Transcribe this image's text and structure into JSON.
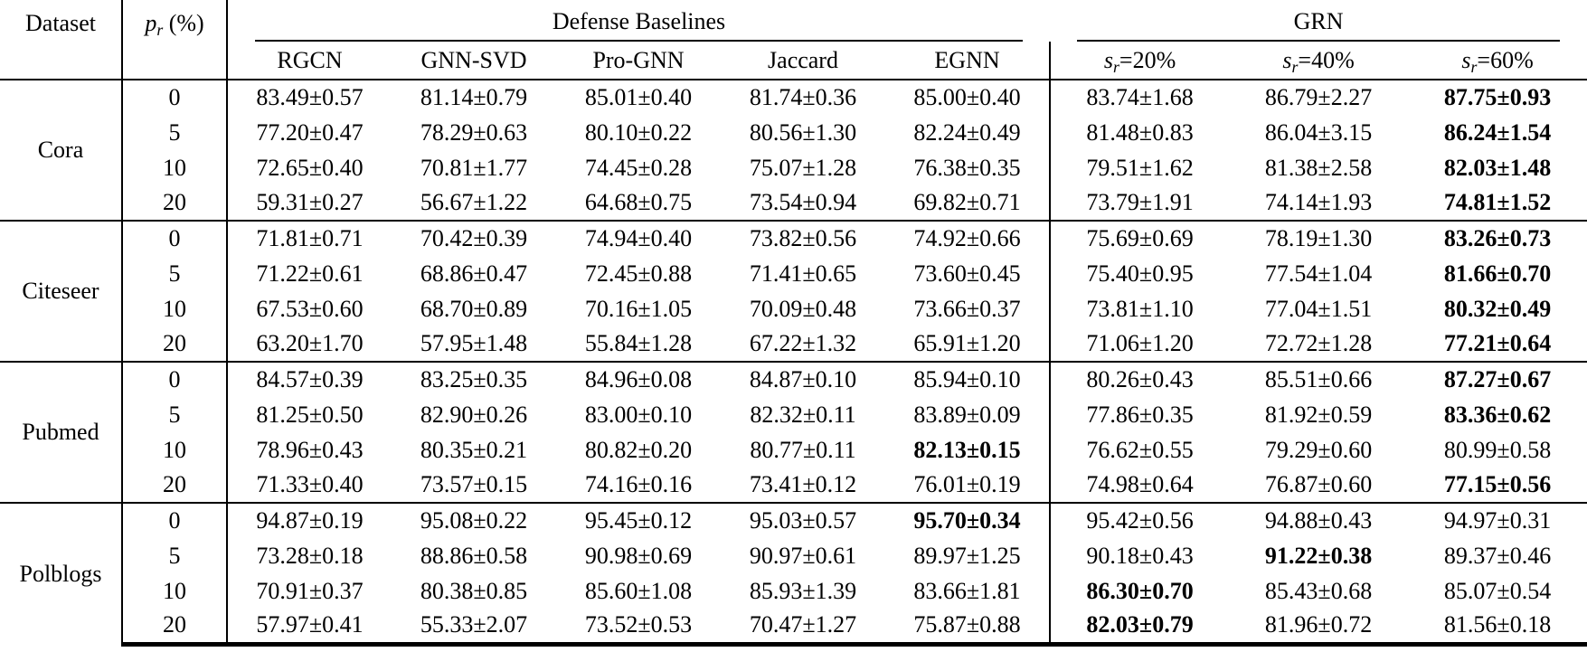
{
  "table": {
    "header": {
      "dataset_label": "Dataset",
      "pr": {
        "var": "p",
        "sub": "r",
        "suffix": " (%)"
      },
      "defense_group_label": "Defense Baselines",
      "grn_group_label": "GRN",
      "baseline_columns": [
        {
          "key": "rgcn",
          "label": "RGCN"
        },
        {
          "key": "gnn-svd",
          "label": "GNN-SVD"
        },
        {
          "key": "pro-gnn",
          "label": "Pro-GNN"
        },
        {
          "key": "jaccard",
          "label": "Jaccard"
        },
        {
          "key": "egnn",
          "label": "EGNN"
        }
      ],
      "grn_columns": [
        {
          "key": "sr-20",
          "var": "s",
          "sub": "r",
          "suffix": "=20%"
        },
        {
          "key": "sr-40",
          "var": "s",
          "sub": "r",
          "suffix": "=40%"
        },
        {
          "key": "sr-60",
          "var": "s",
          "sub": "r",
          "suffix": "=60%"
        }
      ]
    },
    "body": [
      {
        "dataset": "Cora",
        "rows": [
          {
            "pr": "0",
            "values": [
              "83.49±0.57",
              "81.14±0.79",
              "85.01±0.40",
              "81.74±0.36",
              "85.00±0.40",
              "83.74±1.68",
              "86.79±2.27",
              "87.75±0.93"
            ],
            "bold": [
              7
            ]
          },
          {
            "pr": "5",
            "values": [
              "77.20±0.47",
              "78.29±0.63",
              "80.10±0.22",
              "80.56±1.30",
              "82.24±0.49",
              "81.48±0.83",
              "86.04±3.15",
              "86.24±1.54"
            ],
            "bold": [
              7
            ]
          },
          {
            "pr": "10",
            "values": [
              "72.65±0.40",
              "70.81±1.77",
              "74.45±0.28",
              "75.07±1.28",
              "76.38±0.35",
              "79.51±1.62",
              "81.38±2.58",
              "82.03±1.48"
            ],
            "bold": [
              7
            ]
          },
          {
            "pr": "20",
            "values": [
              "59.31±0.27",
              "56.67±1.22",
              "64.68±0.75",
              "73.54±0.94",
              "69.82±0.71",
              "73.79±1.91",
              "74.14±1.93",
              "74.81±1.52"
            ],
            "bold": [
              7
            ]
          }
        ]
      },
      {
        "dataset": "Citeseer",
        "rows": [
          {
            "pr": "0",
            "values": [
              "71.81±0.71",
              "70.42±0.39",
              "74.94±0.40",
              "73.82±0.56",
              "74.92±0.66",
              "75.69±0.69",
              "78.19±1.30",
              "83.26±0.73"
            ],
            "bold": [
              7
            ]
          },
          {
            "pr": "5",
            "values": [
              "71.22±0.61",
              "68.86±0.47",
              "72.45±0.88",
              "71.41±0.65",
              "73.60±0.45",
              "75.40±0.95",
              "77.54±1.04",
              "81.66±0.70"
            ],
            "bold": [
              7
            ]
          },
          {
            "pr": "10",
            "values": [
              "67.53±0.60",
              "68.70±0.89",
              "70.16±1.05",
              "70.09±0.48",
              "73.66±0.37",
              "73.81±1.10",
              "77.04±1.51",
              "80.32±0.49"
            ],
            "bold": [
              7
            ]
          },
          {
            "pr": "20",
            "values": [
              "63.20±1.70",
              "57.95±1.48",
              "55.84±1.28",
              "67.22±1.32",
              "65.91±1.20",
              "71.06±1.20",
              "72.72±1.28",
              "77.21±0.64"
            ],
            "bold": [
              7
            ]
          }
        ]
      },
      {
        "dataset": "Pubmed",
        "rows": [
          {
            "pr": "0",
            "values": [
              "84.57±0.39",
              "83.25±0.35",
              "84.96±0.08",
              "84.87±0.10",
              "85.94±0.10",
              "80.26±0.43",
              "85.51±0.66",
              "87.27±0.67"
            ],
            "bold": [
              7
            ]
          },
          {
            "pr": "5",
            "values": [
              "81.25±0.50",
              "82.90±0.26",
              "83.00±0.10",
              "82.32±0.11",
              "83.89±0.09",
              "77.86±0.35",
              "81.92±0.59",
              "83.36±0.62"
            ],
            "bold": [
              7
            ]
          },
          {
            "pr": "10",
            "values": [
              "78.96±0.43",
              "80.35±0.21",
              "80.82±0.20",
              "80.77±0.11",
              "82.13±0.15",
              "76.62±0.55",
              "79.29±0.60",
              "80.99±0.58"
            ],
            "bold": [
              4
            ]
          },
          {
            "pr": "20",
            "values": [
              "71.33±0.40",
              "73.57±0.15",
              "74.16±0.16",
              "73.41±0.12",
              "76.01±0.19",
              "74.98±0.64",
              "76.87±0.60",
              "77.15±0.56"
            ],
            "bold": [
              7
            ]
          }
        ]
      },
      {
        "dataset": "Polblogs",
        "rows": [
          {
            "pr": "0",
            "values": [
              "94.87±0.19",
              "95.08±0.22",
              "95.45±0.12",
              "95.03±0.57",
              "95.70±0.34",
              "95.42±0.56",
              "94.88±0.43",
              "94.97±0.31"
            ],
            "bold": [
              4
            ]
          },
          {
            "pr": "5",
            "values": [
              "73.28±0.18",
              "88.86±0.58",
              "90.98±0.69",
              "90.97±0.61",
              "89.97±1.25",
              "90.18±0.43",
              "91.22±0.38",
              "89.37±0.46"
            ],
            "bold": [
              6
            ]
          },
          {
            "pr": "10",
            "values": [
              "70.91±0.37",
              "80.38±0.85",
              "85.60±1.08",
              "85.93±1.39",
              "83.66±1.81",
              "86.30±0.70",
              "85.43±0.68",
              "85.07±0.54"
            ],
            "bold": [
              5
            ]
          },
          {
            "pr": "20",
            "values": [
              "57.97±0.41",
              "55.33±2.07",
              "73.52±0.53",
              "70.47±1.27",
              "75.87±0.88",
              "82.03±0.79",
              "81.96±0.72",
              "81.56±0.18"
            ],
            "bold": [
              5
            ]
          }
        ]
      }
    ]
  }
}
